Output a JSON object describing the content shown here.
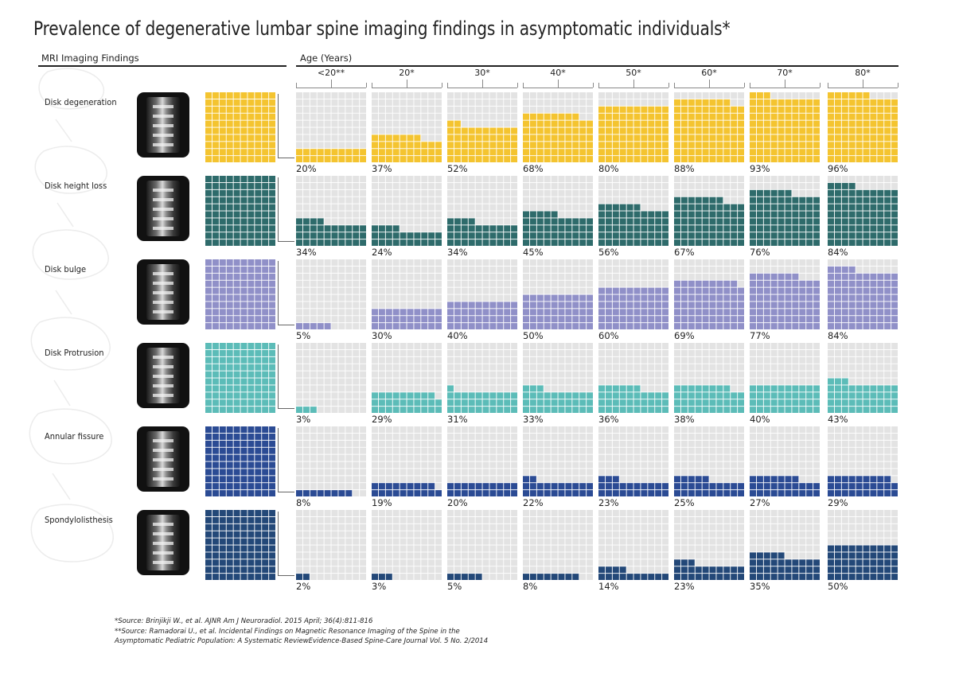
{
  "title": "Prevalence of degenerative lumbar spine imaging findings in asymptomatic individuals*",
  "headers": {
    "left": "MRI Imaging Findings",
    "right": "Age (Years)"
  },
  "colors": {
    "empty": "#e3e3e3",
    "findings": [
      "#f4c430",
      "#2e6b6b",
      "#9090c8",
      "#5cbcb8",
      "#2b4b94",
      "#234878"
    ]
  },
  "chart_data": {
    "type": "waffle",
    "grid": "10x10",
    "categories": [
      "<20**",
      "20*",
      "30*",
      "40*",
      "50*",
      "60*",
      "70*",
      "80*"
    ],
    "series": [
      {
        "name": "Disk degeneration",
        "values": [
          20,
          37,
          52,
          68,
          80,
          88,
          93,
          96
        ],
        "labels": [
          "20%",
          "37%",
          "52%",
          "68%",
          "80%",
          "88%",
          "93%",
          "96%"
        ]
      },
      {
        "name": "Disk height loss",
        "values": [
          34,
          24,
          34,
          45,
          56,
          67,
          76,
          84
        ],
        "labels": [
          "34%",
          "24%",
          "34%",
          "45%",
          "56%",
          "67%",
          "76%",
          "84%"
        ]
      },
      {
        "name": "Disk bulge",
        "values": [
          5,
          30,
          40,
          50,
          60,
          69,
          77,
          84
        ],
        "labels": [
          "5%",
          "30%",
          "40%",
          "50%",
          "60%",
          "69%",
          "77%",
          "84%"
        ]
      },
      {
        "name": "Disk Protrusion",
        "values": [
          3,
          29,
          31,
          33,
          36,
          38,
          40,
          43
        ],
        "labels": [
          "3%",
          "29%",
          "31%",
          "33%",
          "36%",
          "38%",
          "40%",
          "43%"
        ]
      },
      {
        "name": "Annular fissure",
        "values": [
          8,
          19,
          20,
          22,
          23,
          25,
          27,
          29
        ],
        "labels": [
          "8%",
          "19%",
          "20%",
          "22%",
          "23%",
          "25%",
          "27%",
          "29%"
        ]
      },
      {
        "name": "Spondylolisthesis",
        "values": [
          2,
          3,
          5,
          8,
          14,
          23,
          35,
          50
        ],
        "labels": [
          "2%",
          "3%",
          "5%",
          "8%",
          "14%",
          "23%",
          "35%",
          "50%"
        ]
      }
    ]
  },
  "footnotes": [
    "*Source: Brinjikji W., et al. AJNR Am J Neuroradiol. 2015 April; 36(4):811-816",
    "**Source: Ramadorai U., et al. Incidental Findings on Magnetic Resonance Imaging of the Spine in the",
    "Asymptomatic Pediatric Population: A Systematic ReviewEvidence-Based Spine-Care Journal Vol. 5 No. 2/2014"
  ]
}
